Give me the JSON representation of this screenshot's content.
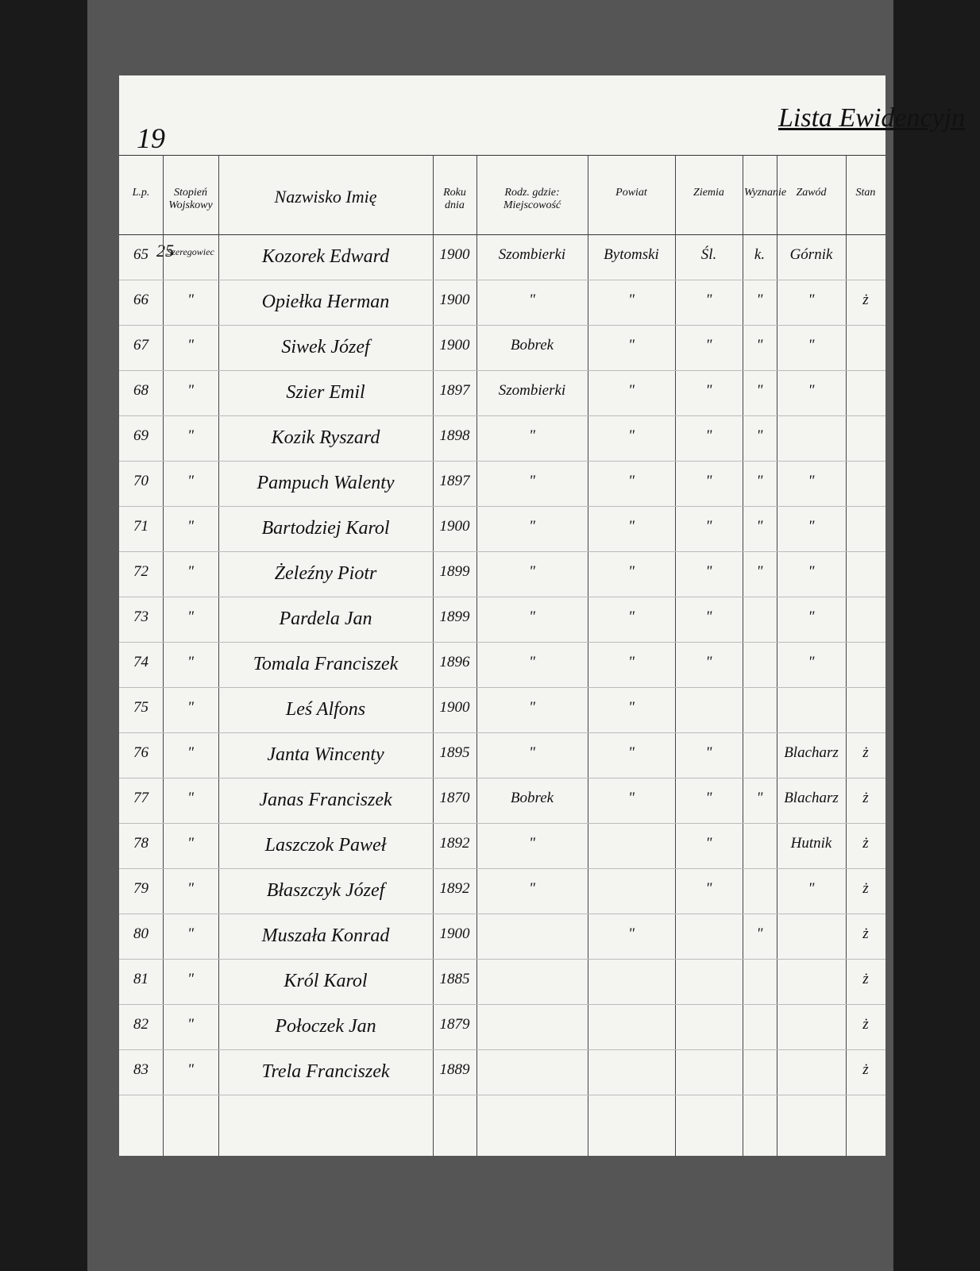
{
  "header": {
    "page_number": "19",
    "title": "Lista Ewidencyjn",
    "annotation": "25"
  },
  "table": {
    "headers": [
      "L.p.",
      "Stopień Wojskowy",
      "Nazwisko Imię",
      "Roku dnia",
      "Rodz. gdzie: Miejscowość",
      "Powiat",
      "Ziemia",
      "Wyznanie",
      "Zawód",
      "Stan"
    ],
    "rows": [
      [
        "65",
        "Szeregowiec",
        "Kozorek Edward",
        "1900",
        "Szombierki",
        "Bytomski",
        "Śl.",
        "k.",
        "Górnik",
        null
      ],
      [
        "66",
        "\"",
        "Opiełka Herman",
        "1900",
        "\"",
        "\"",
        "\"",
        "\"",
        "\"",
        "ż"
      ],
      [
        "67",
        "\"",
        "Siwek Józef",
        "1900",
        "Bobrek",
        "\"",
        "\"",
        "\"",
        "\"",
        null
      ],
      [
        "68",
        "\"",
        "Szier Emil",
        "1897",
        "Szombierki",
        "\"",
        "\"",
        "\"",
        "\"",
        null
      ],
      [
        "69",
        "\"",
        "Kozik Ryszard",
        "1898",
        "\"",
        "\"",
        "\"",
        "\"",
        null,
        null
      ],
      [
        "70",
        "\"",
        "Pampuch Walenty",
        "1897",
        "\"",
        "\"",
        "\"",
        "\"",
        "\"",
        null
      ],
      [
        "71",
        "\"",
        "Bartodziej Karol",
        "1900",
        "\"",
        "\"",
        "\"",
        "\"",
        "\"",
        null
      ],
      [
        "72",
        "\"",
        "Żeleźny Piotr",
        "1899",
        "\"",
        "\"",
        "\"",
        "\"",
        "\"",
        null
      ],
      [
        "73",
        "\"",
        "Pardela Jan",
        "1899",
        "\"",
        "\"",
        "\"",
        null,
        "\"",
        null
      ],
      [
        "74",
        "\"",
        "Tomala Franciszek",
        "1896",
        "\"",
        "\"",
        "\"",
        null,
        "\"",
        null
      ],
      [
        "75",
        "\"",
        "Leś Alfons",
        "1900",
        "\"",
        "\"",
        null,
        null,
        null,
        null
      ],
      [
        "76",
        "\"",
        "Janta Wincenty",
        "1895",
        "\"",
        "\"",
        "\"",
        null,
        "Blacharz",
        "ż"
      ],
      [
        "77",
        "\"",
        "Janas Franciszek",
        "1870",
        "Bobrek",
        "\"",
        "\"",
        "\"",
        "Blacharz",
        "ż"
      ],
      [
        "78",
        "\"",
        "Laszczok Paweł",
        "1892",
        "\"",
        null,
        "\"",
        null,
        "Hutnik",
        "ż"
      ],
      [
        "79",
        "\"",
        "Błaszczyk Józef",
        "1892",
        "\"",
        null,
        "\"",
        null,
        "\"",
        "ż"
      ],
      [
        "80",
        "\"",
        "Muszała Konrad",
        "1900",
        null,
        "\"",
        null,
        "\"",
        null,
        "ż"
      ],
      [
        "81",
        "\"",
        "Król Karol",
        "1885",
        null,
        null,
        null,
        null,
        null,
        "ż"
      ],
      [
        "82",
        "\"",
        "Połoczek Jan",
        "1879",
        null,
        null,
        null,
        null,
        null,
        "ż"
      ],
      [
        "83",
        "\"",
        "Trela Franciszek",
        "1889",
        null,
        null,
        null,
        null,
        null,
        "ż"
      ]
    ]
  }
}
